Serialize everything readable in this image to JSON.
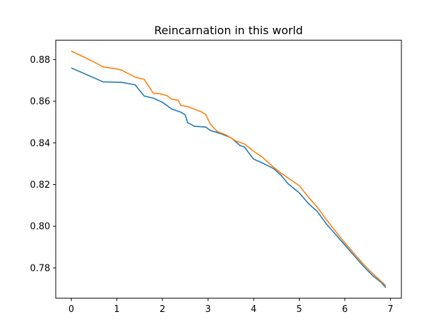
{
  "chart_data": {
    "type": "line",
    "title": "Reincarnation in this world",
    "xlabel": "",
    "ylabel": "",
    "xlim": [
      -0.34,
      7.24
    ],
    "ylim": [
      0.7655,
      0.8893
    ],
    "x_ticks": [
      0,
      1,
      2,
      3,
      4,
      5,
      6,
      7
    ],
    "x_tick_labels": [
      "0",
      "1",
      "2",
      "3",
      "4",
      "5",
      "6",
      "7"
    ],
    "y_ticks": [
      0.78,
      0.8,
      0.82,
      0.84,
      0.86,
      0.88
    ],
    "y_tick_labels": [
      "0.78",
      "0.80",
      "0.82",
      "0.84",
      "0.86",
      "0.88"
    ],
    "grid": false,
    "series": [
      {
        "color": "#1f77b4",
        "points": [
          [
            0.0,
            0.876
          ],
          [
            0.7,
            0.8693
          ],
          [
            1.1,
            0.8691
          ],
          [
            1.4,
            0.8679
          ],
          [
            1.6,
            0.8625
          ],
          [
            1.8,
            0.8615
          ],
          [
            2.0,
            0.8595
          ],
          [
            2.2,
            0.8563
          ],
          [
            2.4,
            0.8548
          ],
          [
            2.5,
            0.8535
          ],
          [
            2.55,
            0.8498
          ],
          [
            2.7,
            0.848
          ],
          [
            2.95,
            0.8476
          ],
          [
            3.05,
            0.846
          ],
          [
            3.3,
            0.8443
          ],
          [
            3.5,
            0.8425
          ],
          [
            3.7,
            0.8388
          ],
          [
            3.8,
            0.838
          ],
          [
            3.9,
            0.835
          ],
          [
            4.0,
            0.8322
          ],
          [
            4.15,
            0.8308
          ],
          [
            4.3,
            0.8292
          ],
          [
            4.45,
            0.8275
          ],
          [
            4.6,
            0.8245
          ],
          [
            4.75,
            0.8205
          ],
          [
            5.0,
            0.816
          ],
          [
            5.2,
            0.811
          ],
          [
            5.4,
            0.807
          ],
          [
            5.6,
            0.801
          ],
          [
            5.8,
            0.796
          ],
          [
            6.0,
            0.791
          ],
          [
            6.2,
            0.786
          ],
          [
            6.4,
            0.781
          ],
          [
            6.6,
            0.7765
          ],
          [
            6.8,
            0.773
          ],
          [
            6.9,
            0.7705
          ]
        ]
      },
      {
        "color": "#ff7f0e",
        "points": [
          [
            0.0,
            0.8841
          ],
          [
            0.25,
            0.8815
          ],
          [
            0.5,
            0.8788
          ],
          [
            0.7,
            0.8765
          ],
          [
            1.0,
            0.8755
          ],
          [
            1.1,
            0.875
          ],
          [
            1.4,
            0.8716
          ],
          [
            1.6,
            0.8705
          ],
          [
            1.8,
            0.8638
          ],
          [
            1.95,
            0.8636
          ],
          [
            2.1,
            0.8627
          ],
          [
            2.2,
            0.861
          ],
          [
            2.35,
            0.8605
          ],
          [
            2.4,
            0.858
          ],
          [
            2.55,
            0.8575
          ],
          [
            2.7,
            0.8562
          ],
          [
            2.85,
            0.855
          ],
          [
            2.95,
            0.8536
          ],
          [
            3.05,
            0.849
          ],
          [
            3.2,
            0.8455
          ],
          [
            3.4,
            0.8438
          ],
          [
            3.6,
            0.841
          ],
          [
            3.8,
            0.8395
          ],
          [
            4.0,
            0.836
          ],
          [
            4.2,
            0.833
          ],
          [
            4.4,
            0.829
          ],
          [
            4.6,
            0.8255
          ],
          [
            4.8,
            0.8225
          ],
          [
            5.0,
            0.8195
          ],
          [
            5.2,
            0.814
          ],
          [
            5.4,
            0.809
          ],
          [
            5.6,
            0.803
          ],
          [
            5.8,
            0.7975
          ],
          [
            6.0,
            0.792
          ],
          [
            6.2,
            0.787
          ],
          [
            6.4,
            0.782
          ],
          [
            6.6,
            0.7775
          ],
          [
            6.8,
            0.7735
          ],
          [
            6.9,
            0.7715
          ]
        ]
      }
    ]
  }
}
